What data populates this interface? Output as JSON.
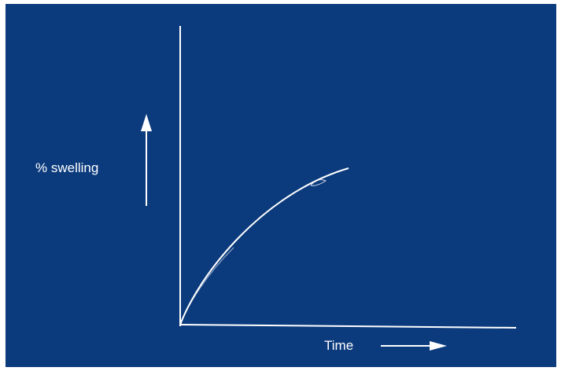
{
  "diagram": {
    "ylabel": "% swelling",
    "xlabel": "Time",
    "background_color": "#0c3b7d",
    "ink_color": "#ffffff",
    "curve_shape": "concave-increasing"
  }
}
